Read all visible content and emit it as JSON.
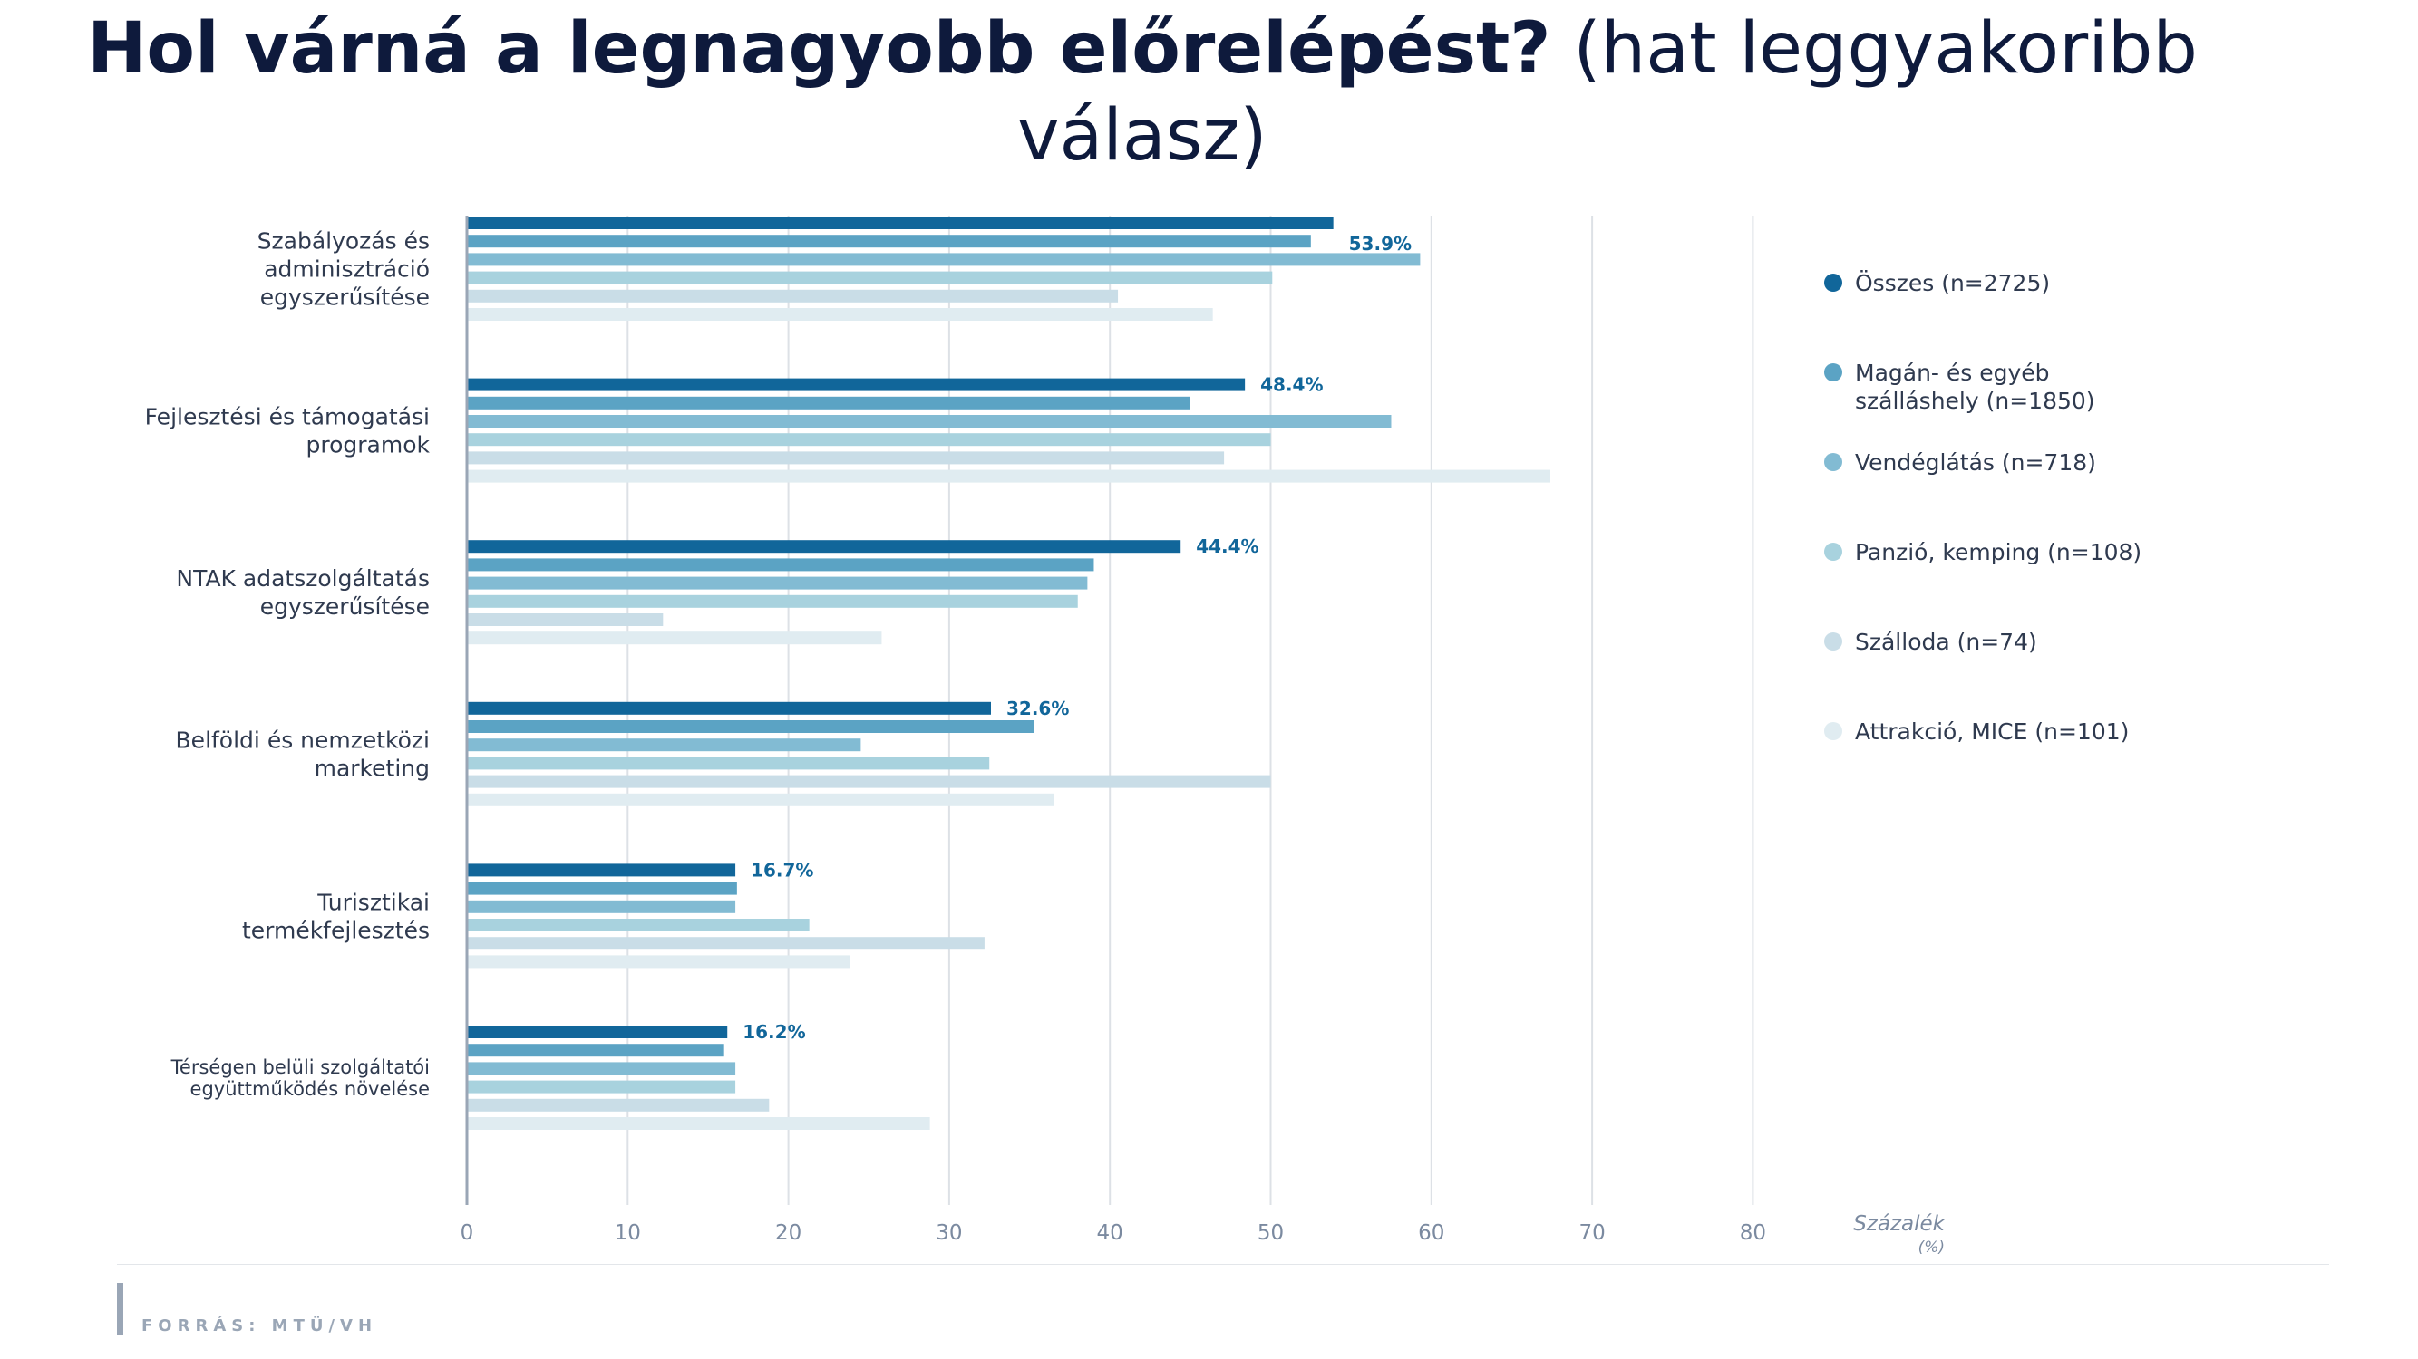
{
  "title": {
    "bold": "Hol várná a legnagyobb előrelépést?",
    "regular": "(hat leggyakoribb válasz)"
  },
  "source": "FORRÁS: MTÜ/VH",
  "chart_data": {
    "type": "bar",
    "orientation": "horizontal",
    "categories": [
      [
        "Szabályozás és",
        "adminisztráció",
        "egyszerűsítése"
      ],
      [
        "Fejlesztési és támogatási",
        "programok"
      ],
      [
        "NTAK adatszolgáltatás",
        "egyszerűsítése"
      ],
      [
        "Belföldi és nemzetközi",
        "marketing"
      ],
      [
        "Turisztikai",
        "termékfejlesztés"
      ],
      [
        "Térségen belüli szolgáltatói",
        "együttműködés növelése"
      ]
    ],
    "series": [
      {
        "name": "Összes (n=2725)",
        "color": "#11669a",
        "values": [
          53.9,
          48.4,
          44.4,
          32.6,
          16.7,
          16.2
        ]
      },
      {
        "name": "Magán- és egyéb szálláshely (n=1850)",
        "color": "#5ba3c4",
        "values": [
          52.5,
          45.0,
          39.0,
          35.3,
          16.8,
          16.0
        ]
      },
      {
        "name": "Vendéglátás (n=718)",
        "color": "#82bbd3",
        "values": [
          59.3,
          57.5,
          38.6,
          24.5,
          16.7,
          16.7
        ]
      },
      {
        "name": "Panzió, kemping (n=108)",
        "color": "#a8d2de",
        "values": [
          50.1,
          50.0,
          38.0,
          32.5,
          21.3,
          16.7
        ]
      },
      {
        "name": "Szálloda (n=74)",
        "color": "#c9dde7",
        "values": [
          40.5,
          47.1,
          12.2,
          50.0,
          32.2,
          18.8
        ]
      },
      {
        "name": "Attrakció, MICE (n=101)",
        "color": "#e0ecf1",
        "values": [
          46.4,
          67.4,
          25.8,
          36.5,
          23.8,
          28.8
        ]
      }
    ],
    "data_labels": [
      "53.9%",
      "48.4%",
      "44.4%",
      "32.6%",
      "16.7%",
      "16.2%"
    ],
    "xlim": [
      0,
      80
    ],
    "xticks": [
      0,
      10,
      20,
      30,
      40,
      50,
      60,
      70,
      80
    ],
    "xlabel": "Százalék",
    "xlabel_unit": "(%)",
    "grid": true,
    "legend_position": "right"
  }
}
